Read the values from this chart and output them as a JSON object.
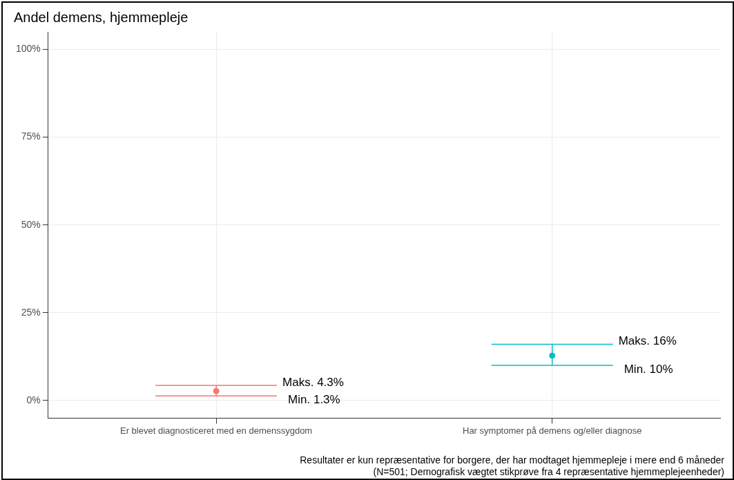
{
  "chart_data": {
    "type": "scatter",
    "title": "Andel demens, hjemmepleje",
    "categories": [
      "Er blevet diagnosticeret med en demenssygdom",
      "Har symptomer på demens og/eller diagnose"
    ],
    "values": [
      2.7,
      12.8
    ],
    "colors": [
      "#f8766d",
      "#00bfc4"
    ],
    "errors": [
      [
        1.3,
        4.3
      ],
      [
        10,
        16
      ]
    ],
    "ylim": [
      -5,
      105
    ],
    "yticks": [
      {
        "value": 0,
        "label": "0%"
      },
      {
        "value": 25,
        "label": "25%"
      },
      {
        "value": 50,
        "label": "50%"
      },
      {
        "value": 75,
        "label": "75%"
      },
      {
        "value": 100,
        "label": "100%"
      }
    ],
    "grid": true,
    "legend": false,
    "marker": "circle",
    "annotations": [
      "Maks. 4.3%",
      "Min. 1.3%",
      "Maks. 16%",
      "Min. 10%",
      "Resultater er kun repræsentative for borgere, der har modtaget hjemmepleje i mere end 6 måneder",
      "(N=501; Demografisk vægtet stikprøve fra 4 repræsentative hjemmeplejeenheder)"
    ]
  }
}
